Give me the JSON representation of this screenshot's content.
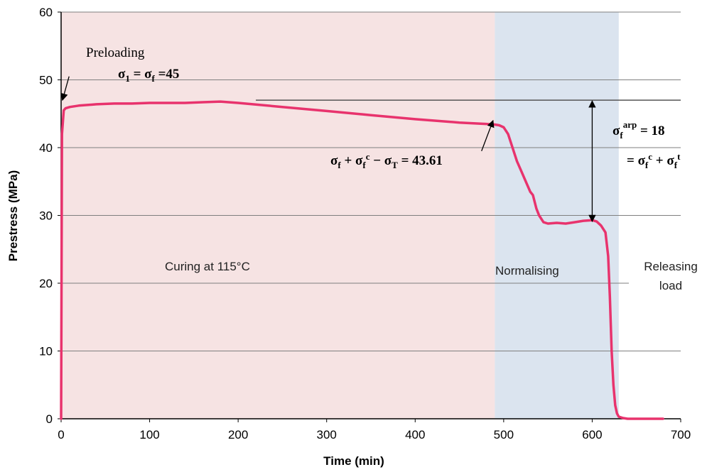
{
  "chart_data": {
    "type": "line",
    "title": "",
    "xlabel": "Time  (min)",
    "ylabel": "Prestress (MPa)",
    "xlim": [
      0,
      700
    ],
    "ylim": [
      0,
      60
    ],
    "xticks": [
      0,
      100,
      200,
      300,
      400,
      500,
      600,
      700
    ],
    "yticks": [
      0,
      10,
      20,
      30,
      40,
      50,
      60
    ],
    "grid": "horizontal",
    "line_color": "#e8336d",
    "regions": [
      {
        "name": "curing",
        "label": "Curing at 115°C",
        "x": [
          0,
          490
        ],
        "color": "#f6e3e3"
      },
      {
        "name": "normalising",
        "label": "Normalising",
        "x": [
          490,
          630
        ],
        "color": "#dbe4ef"
      }
    ],
    "outside_label": "Releasing load",
    "series": [
      {
        "x": [
          0,
          1,
          3,
          5,
          10,
          20,
          40,
          60,
          80,
          100,
          120,
          140,
          160,
          180,
          200,
          250,
          300,
          350,
          400,
          450,
          480,
          490,
          495,
          500,
          505,
          510,
          515,
          520,
          525,
          530,
          533,
          537,
          540,
          545,
          550,
          560,
          570,
          580,
          590,
          600,
          605,
          610,
          615,
          618,
          620,
          622,
          624,
          626,
          628,
          630,
          635,
          640,
          650,
          660,
          670,
          680
        ],
        "y": [
          0,
          42,
          45.5,
          45.8,
          46.0,
          46.2,
          46.4,
          46.5,
          46.5,
          46.6,
          46.6,
          46.6,
          46.7,
          46.8,
          46.6,
          46.0,
          45.4,
          44.8,
          44.2,
          43.7,
          43.5,
          43.4,
          43.3,
          43.0,
          42.0,
          40.0,
          38.0,
          36.5,
          35.0,
          33.5,
          33.0,
          31.0,
          30.0,
          29.0,
          28.8,
          28.9,
          28.8,
          29.0,
          29.2,
          29.3,
          29.1,
          28.5,
          27.5,
          24.0,
          18.0,
          10.0,
          5.0,
          2.0,
          0.8,
          0.3,
          0.1,
          0.0,
          0.0,
          0.0,
          0.0,
          0.0
        ]
      }
    ],
    "reference_line": {
      "y": 47,
      "x": [
        220,
        700
      ],
      "color": "#555555"
    },
    "dimension_arrow": {
      "x": 600,
      "y": [
        47,
        29
      ]
    },
    "annotations": [
      {
        "name": "preloading",
        "text": "Preloading"
      },
      {
        "name": "sigma-initial",
        "text": "σ1 = σf =45"
      },
      {
        "name": "sigma-end-curing",
        "text": "σf + σfc − σT = 43.61"
      },
      {
        "name": "sigma-arp",
        "text": "σfarp = 18"
      },
      {
        "name": "sigma-arp-sum",
        "text": "= σfc + σft"
      }
    ]
  }
}
